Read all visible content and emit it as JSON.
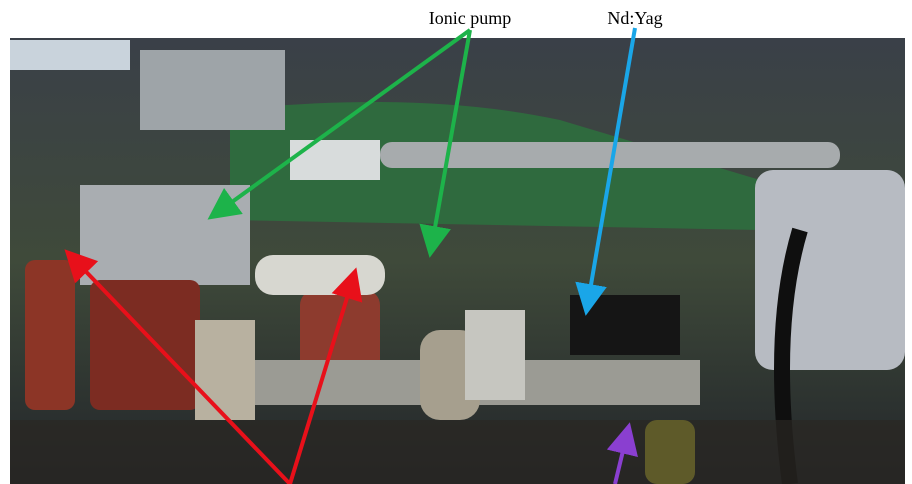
{
  "annotations": [
    {
      "label": "Ionic pump"
    },
    {
      "label": "Nd:Yag"
    }
  ]
}
